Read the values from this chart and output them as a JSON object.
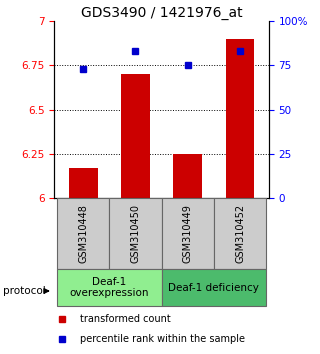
{
  "title": "GDS3490 / 1421976_at",
  "samples": [
    "GSM310448",
    "GSM310450",
    "GSM310449",
    "GSM310452"
  ],
  "red_values": [
    6.17,
    6.7,
    6.25,
    6.9
  ],
  "blue_values": [
    73,
    83,
    75,
    83
  ],
  "ylim_left": [
    6.0,
    7.0
  ],
  "ylim_right": [
    0,
    100
  ],
  "yticks_left": [
    6.0,
    6.25,
    6.5,
    6.75,
    7.0
  ],
  "ytick_labels_left": [
    "6",
    "6.25",
    "6.5",
    "6.75",
    "7"
  ],
  "yticks_right": [
    0,
    25,
    50,
    75,
    100
  ],
  "ytick_labels_right": [
    "0",
    "25",
    "50",
    "75",
    "100%"
  ],
  "groups": [
    {
      "label": "Deaf-1\noverexpression",
      "color": "#90ee90",
      "start": 0,
      "end": 1
    },
    {
      "label": "Deaf-1 deficiency",
      "color": "#4cbb6c",
      "start": 2,
      "end": 3
    }
  ],
  "bar_color": "#cc0000",
  "dot_color": "#0000cc",
  "bar_width": 0.55,
  "title_fontsize": 10,
  "tick_fontsize": 7.5,
  "legend_fontsize": 7,
  "sample_fontsize": 7,
  "group_fontsize": 7.5,
  "protocol_label": "protocol"
}
